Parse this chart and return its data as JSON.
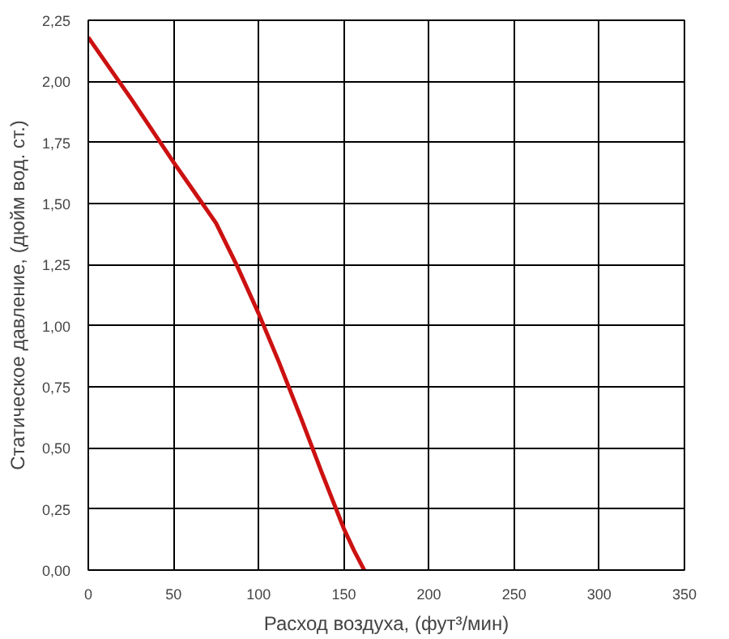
{
  "chart_data": {
    "type": "line",
    "xlabel": "Расход воздуха, (фут³/мин)",
    "ylabel": "Статическое давление, (дюйм вод. ст.)",
    "xlim": [
      0,
      350
    ],
    "xticks": [
      0,
      50,
      100,
      150,
      200,
      250,
      300,
      350
    ],
    "ylim": [
      0,
      2.25
    ],
    "yticks": [
      {
        "value": 0,
        "label": "0,00"
      },
      {
        "value": 0.25,
        "label": "0,25"
      },
      {
        "value": 0.5,
        "label": "0,50"
      },
      {
        "value": 0.75,
        "label": "0,75"
      },
      {
        "value": 1.0,
        "label": "1,00"
      },
      {
        "value": 1.25,
        "label": "1,25"
      },
      {
        "value": 1.5,
        "label": "1,50"
      },
      {
        "value": 1.75,
        "label": "1,75"
      },
      {
        "value": 2.0,
        "label": "2,00"
      },
      {
        "value": 2.25,
        "label": "2,25"
      }
    ],
    "grid": true,
    "line_style": "solid",
    "series": [
      {
        "color": "#cc1111",
        "x": [
          0,
          25,
          50,
          65,
          75,
          87,
          100,
          112,
          125,
          137,
          150,
          156,
          162
        ],
        "values": [
          2.18,
          1.93,
          1.67,
          1.52,
          1.42,
          1.25,
          1.05,
          0.85,
          0.62,
          0.4,
          0.17,
          0.08,
          0.0
        ]
      }
    ]
  }
}
